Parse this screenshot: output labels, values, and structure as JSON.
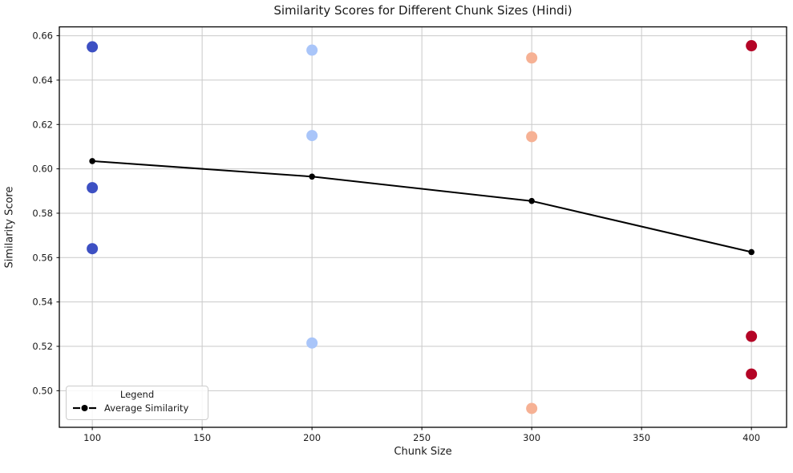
{
  "title": "Similarity Scores for Different Chunk Sizes (Hindi)",
  "chart_data": {
    "type": "scatter",
    "title": "Similarity Scores for Different Chunk Sizes (Hindi)",
    "xlabel": "Chunk Size",
    "ylabel": "Similarity Score",
    "xlim": [
      85,
      416
    ],
    "ylim": [
      0.4835,
      0.664
    ],
    "x_ticks": [
      100,
      150,
      200,
      250,
      300,
      350,
      400
    ],
    "y_ticks": [
      0.5,
      0.52,
      0.54,
      0.56,
      0.58,
      0.6,
      0.62,
      0.64,
      0.66
    ],
    "grid": true,
    "grid_color": "#c9c9c9",
    "spine_color": "#000000",
    "scatter_groups": [
      {
        "name": "chunk-size-100",
        "chunk_size": 100,
        "color": "#3d50c3",
        "y_values": [
          0.655,
          0.5915,
          0.564
        ]
      },
      {
        "name": "chunk-size-200",
        "chunk_size": 200,
        "color": "#a9c5f9",
        "y_values": [
          0.6535,
          0.615,
          0.5215
        ]
      },
      {
        "name": "chunk-size-300",
        "chunk_size": 300,
        "color": "#f6b194",
        "y_values": [
          0.65,
          0.6145,
          0.492
        ]
      },
      {
        "name": "chunk-size-400",
        "chunk_size": 400,
        "color": "#b40426",
        "y_values": [
          0.6555,
          0.5245,
          0.5075
        ]
      }
    ],
    "line_series": {
      "name": "Average Similarity",
      "color": "#000000",
      "x": [
        100,
        200,
        300,
        400
      ],
      "y": [
        0.6035,
        0.5965,
        0.5855,
        0.5625
      ]
    },
    "legend": {
      "title": "Legend",
      "position": "lower-left",
      "entries": [
        {
          "label": "Average Similarity",
          "color": "#000000",
          "marker": "line-dot"
        }
      ]
    }
  }
}
